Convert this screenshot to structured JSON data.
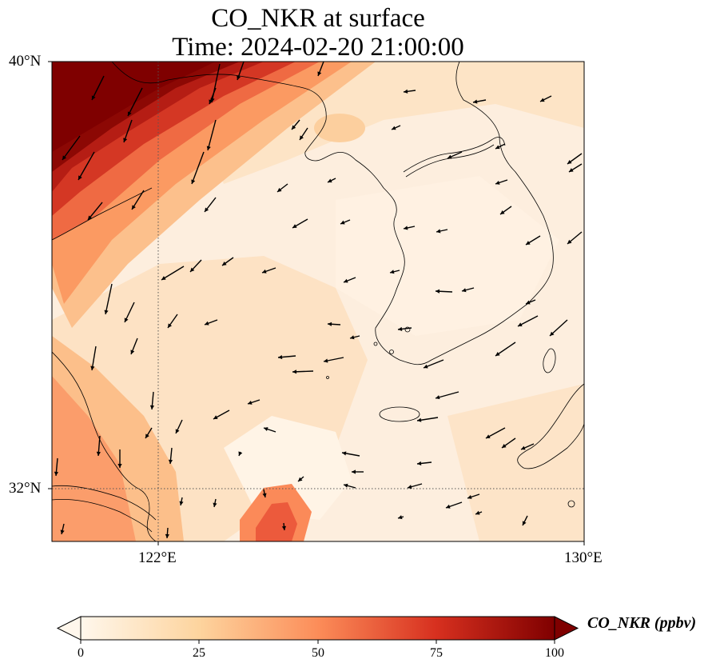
{
  "title": {
    "line1": "CO_NKR at surface",
    "line2": "Time: 2024-02-20 21:00:00"
  },
  "map": {
    "lat_labels": [
      "40°N",
      "32°N"
    ],
    "lon_labels": [
      "122°E",
      "130°E"
    ],
    "lon_range": [
      120,
      130
    ],
    "lat_range": [
      31,
      40
    ],
    "gridlines": {
      "lat": [
        32
      ],
      "lon": [
        122
      ]
    },
    "colormap": "OrRd"
  },
  "colorbar": {
    "label": "CO_NKR (ppbv)",
    "ticks": [
      "0",
      "25",
      "50",
      "75",
      "100"
    ],
    "range": [
      0,
      100
    ],
    "extend": "both"
  }
}
